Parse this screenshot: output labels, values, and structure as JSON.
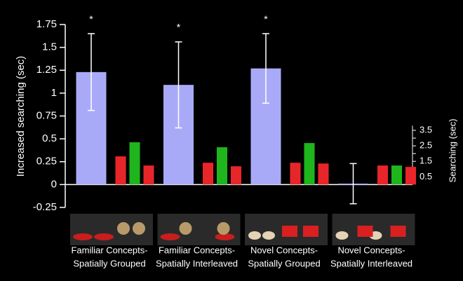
{
  "chart_data": {
    "type": "bar",
    "ylabel": "Increased searching (sec)",
    "y2label": "Searching (sec)",
    "categories": [
      [
        "Familiar Concepts-",
        "Spatially Grouped"
      ],
      [
        "Familiar Concepts-",
        "Spatially Interleaved"
      ],
      [
        "Novel Concepts-",
        "Spatially Grouped"
      ],
      [
        "Novel Concepts-",
        "Spatially Interleaved"
      ]
    ],
    "annotations": [
      "*",
      "*",
      "*",
      null
    ],
    "series": [
      {
        "color": "#a9aaf7",
        "values": [
          1.23,
          1.09,
          1.27,
          0.01
        ],
        "errors": [
          0.42,
          0.47,
          0.38,
          0.22
        ]
      },
      {
        "color": "#e8262a",
        "values": [
          1.82,
          1.41,
          1.41,
          1.23
        ],
        "axis": "y2"
      },
      {
        "color": "#1fb51c",
        "values": [
          2.73,
          2.41,
          2.68,
          1.23
        ],
        "axis": "y2"
      },
      {
        "color": "#e8262a",
        "values": [
          1.23,
          1.18,
          1.36,
          1.14
        ],
        "axis": "y2"
      }
    ],
    "ylim": [
      -0.25,
      1.75
    ],
    "yticks": [
      -0.25,
      0,
      0.25,
      0.5,
      0.75,
      1,
      1.25,
      1.5,
      1.75
    ],
    "y2lim": [
      0,
      3.8
    ],
    "y2ticks": [
      0.5,
      1,
      1.5,
      2,
      2.5,
      3,
      3.5
    ],
    "y2ticklabels": [
      {
        "value": 0.5,
        "label": "0.5"
      },
      {
        "value": 1.5,
        "label": "1.5"
      },
      {
        "value": 2.5,
        "label": "2.5"
      },
      {
        "value": 3.5,
        "label": "3.5"
      }
    ]
  }
}
